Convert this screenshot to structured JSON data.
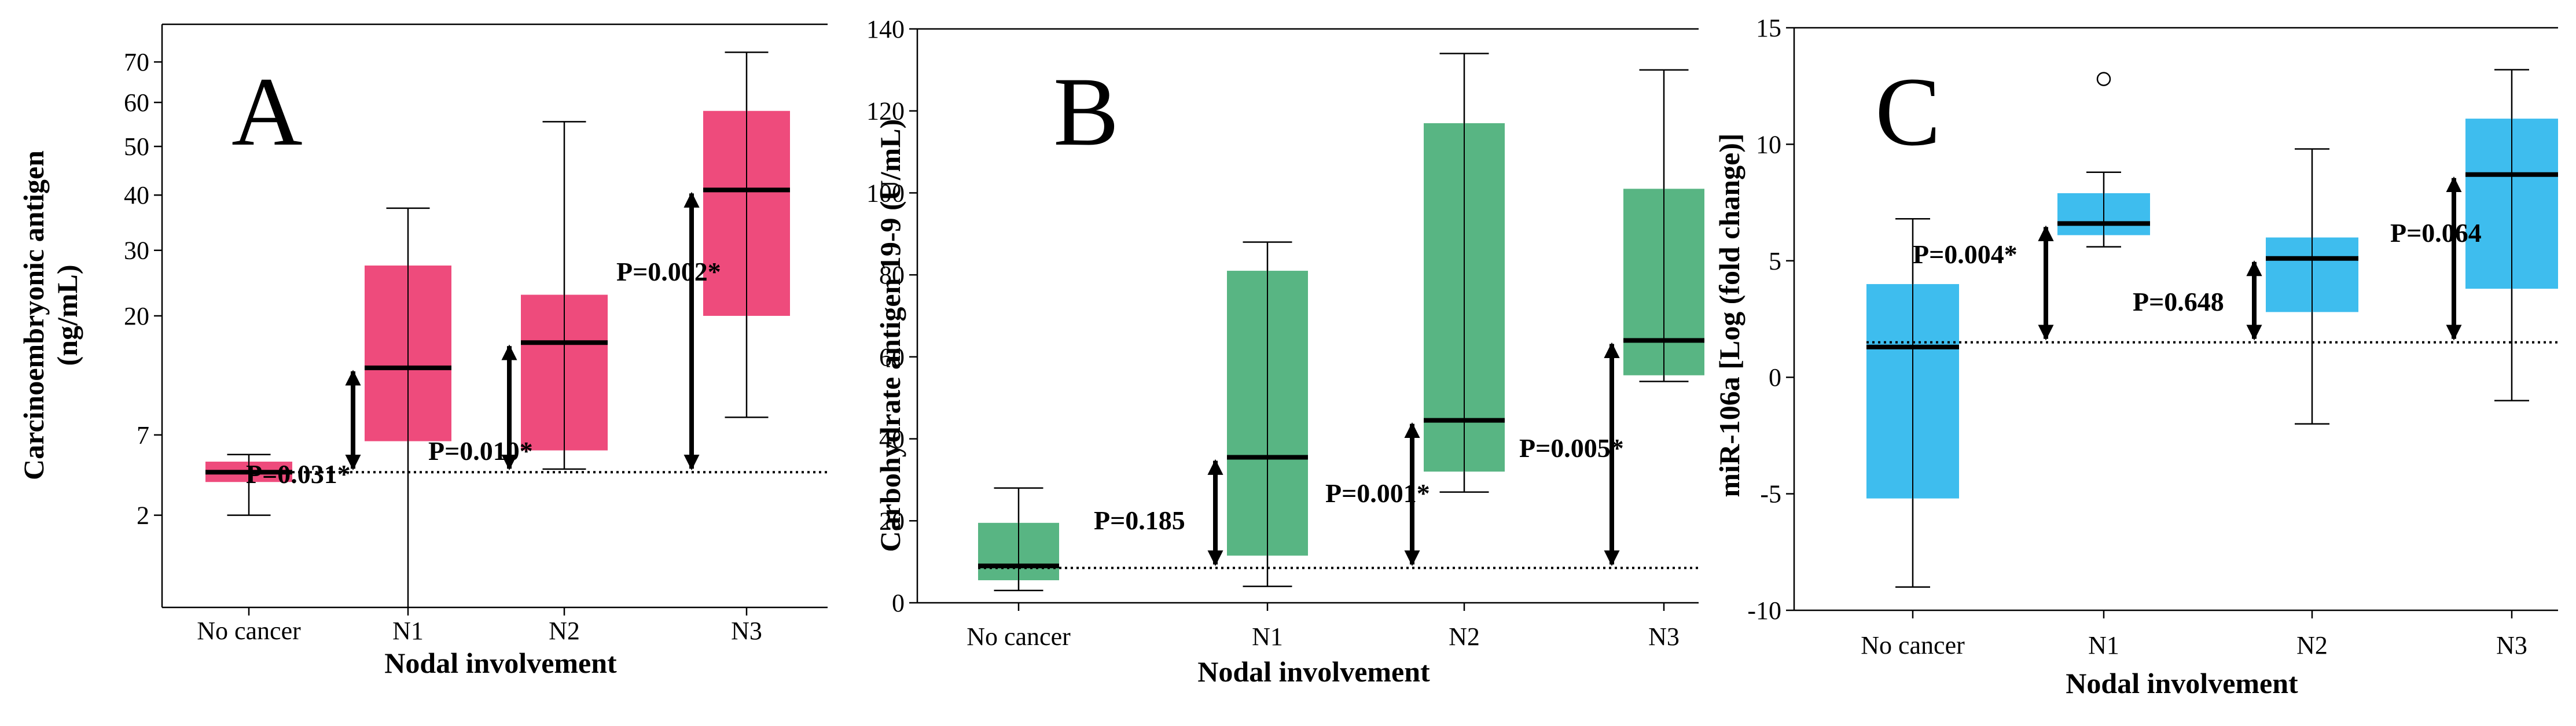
{
  "chart_data": [
    {
      "panel": "A",
      "type": "box",
      "title": "",
      "xlabel": "Nodal involvement",
      "ylabel": "Carcinoembryonic antigen (ng/mL)",
      "ylabel_lines": [
        "Carcinoembryonic antigen",
        "(ng/mL)"
      ],
      "y_scale": "sqrt",
      "ylim": [
        0,
        80
      ],
      "yticks": [
        2,
        7,
        20,
        30,
        40,
        50,
        60,
        70
      ],
      "color": "#ee4b7c",
      "reference_line": 4.3,
      "categories": [
        "No cancer",
        "N1",
        "N2",
        "N3"
      ],
      "boxes": [
        {
          "min": 2.0,
          "q1": 3.7,
          "median": 4.3,
          "q3": 5.0,
          "max": 5.5
        },
        {
          "min": 0.0,
          "q1": 6.5,
          "median": 13.5,
          "q3": 27.5,
          "max": 37.5
        },
        {
          "min": 4.5,
          "q1": 5.8,
          "median": 16.5,
          "q3": 23.0,
          "max": 55.5
        },
        {
          "min": 8.5,
          "q1": 20.0,
          "median": 41.0,
          "q3": 58.0,
          "max": 72.5
        }
      ],
      "annotations": [
        {
          "category": 1,
          "text": "P=0.031*"
        },
        {
          "category": 2,
          "text": "P=0.010*"
        },
        {
          "category": 3,
          "text": "P=0.002*"
        }
      ],
      "outliers": []
    },
    {
      "panel": "B",
      "type": "box",
      "title": "",
      "xlabel": "Nodal involvement",
      "ylabel": "Carbohydrate antigen 19-9 (U/mL)",
      "ylabel_lines": [
        "Carbohydrate antigen 19-9 (U/mL)"
      ],
      "y_scale": "linear",
      "ylim": [
        0,
        140
      ],
      "yticks": [
        0,
        20,
        40,
        60,
        80,
        100,
        120,
        140
      ],
      "color": "#58b583",
      "reference_line": 8.5,
      "categories": [
        "No cancer",
        "N1",
        "N2",
        "N3"
      ],
      "boxes": [
        {
          "min": 3,
          "q1": 5.5,
          "median": 9,
          "q3": 19.5,
          "max": 28
        },
        {
          "min": 4,
          "q1": 11.5,
          "median": 35.5,
          "q3": 81,
          "max": 88
        },
        {
          "min": 27,
          "q1": 32,
          "median": 44.5,
          "q3": 117,
          "max": 134
        },
        {
          "min": 54,
          "q1": 55.5,
          "median": 64,
          "q3": 101,
          "max": 130
        }
      ],
      "annotations": [
        {
          "category": 1,
          "text": "P=0.185"
        },
        {
          "category": 2,
          "text": "P=0.001*"
        },
        {
          "category": 3,
          "text": "P=0.005*"
        }
      ],
      "outliers": []
    },
    {
      "panel": "C",
      "type": "box",
      "title": "",
      "xlabel": "Nodal involvement",
      "ylabel": "miR-106a [Log (fold change)]",
      "ylabel_lines": [
        "miR-106a [Log (fold change)]"
      ],
      "y_scale": "linear",
      "ylim": [
        -10,
        15
      ],
      "yticks": [
        -10,
        -5,
        0,
        5,
        10,
        15
      ],
      "color": "#3ebdee",
      "reference_line": 1.5,
      "categories": [
        "No cancer",
        "N1",
        "N2",
        "N3"
      ],
      "boxes": [
        {
          "min": -9,
          "q1": -5.2,
          "median": 1.3,
          "q3": 4.0,
          "max": 6.8
        },
        {
          "min": 5.6,
          "q1": 6.1,
          "median": 6.6,
          "q3": 7.9,
          "max": 8.8
        },
        {
          "min": -2,
          "q1": 2.8,
          "median": 5.1,
          "q3": 6.0,
          "max": 9.8
        },
        {
          "min": -1,
          "q1": 3.8,
          "median": 8.7,
          "q3": 11.1,
          "max": 13.2
        }
      ],
      "annotations": [
        {
          "category": 1,
          "text": "P=0.004*"
        },
        {
          "category": 2,
          "text": "P=0.648"
        },
        {
          "category": 3,
          "text": "P=0.064"
        }
      ],
      "outliers": [
        {
          "category": 1,
          "value": 12.8
        }
      ]
    }
  ]
}
